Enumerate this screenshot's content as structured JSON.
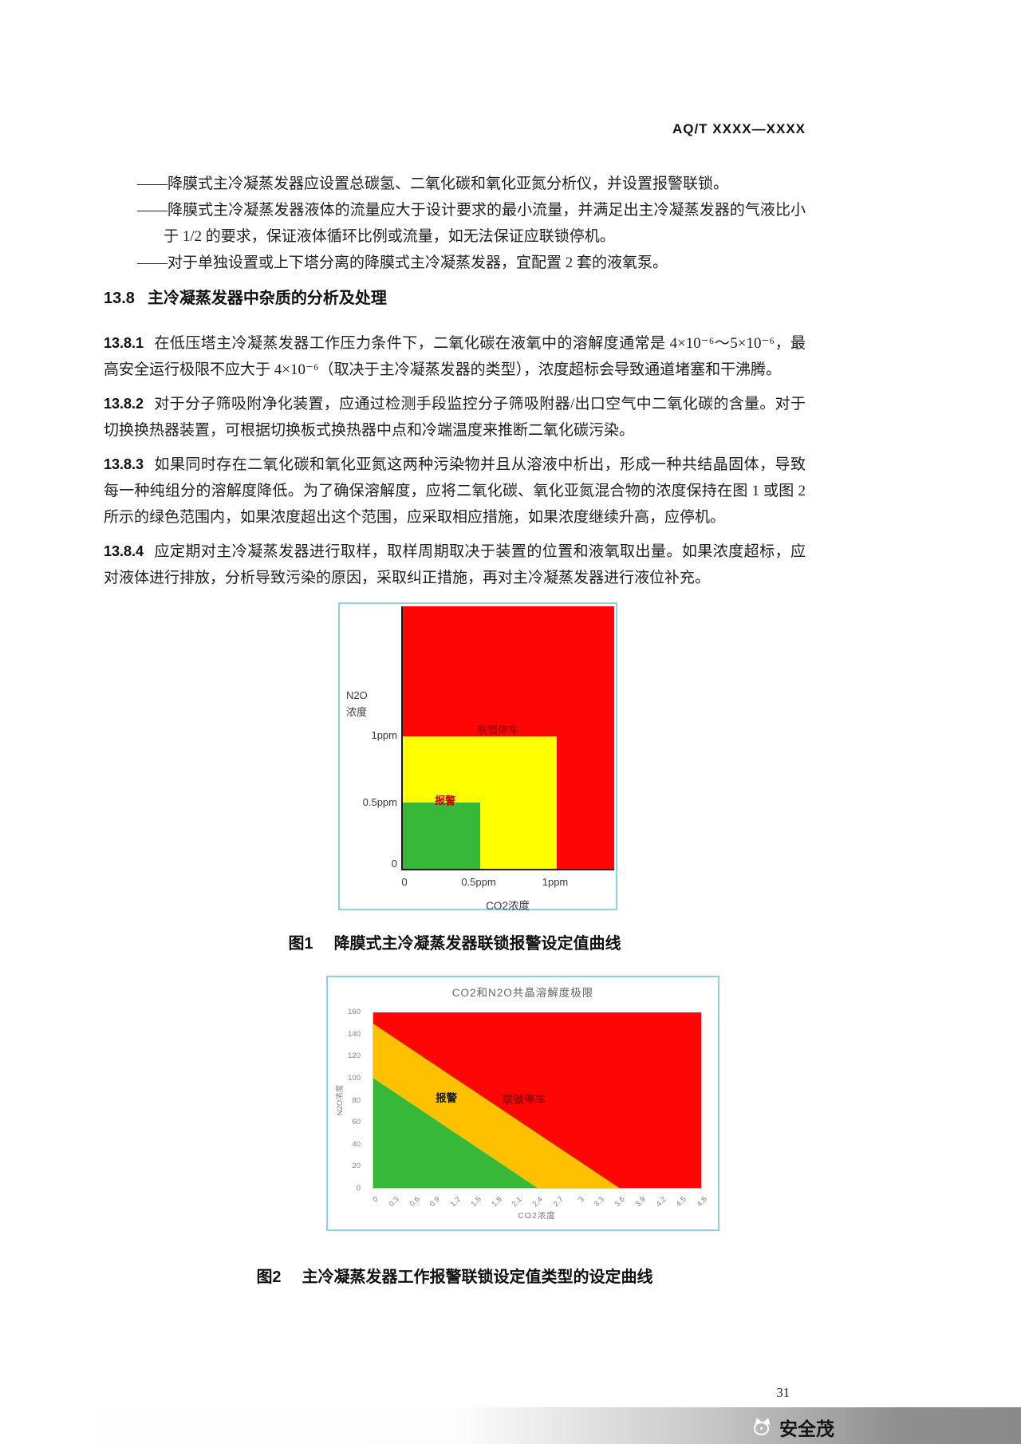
{
  "header": "AQ/T XXXX—XXXX",
  "bullets": [
    "——降膜式主冷凝蒸发器应设置总碳氢、二氧化碳和氧化亚氮分析仪，并设置报警联锁。",
    "——降膜式主冷凝蒸发器液体的流量应大于设计要求的最小流量，并满足出主冷凝蒸发器的气液比小于 1/2 的要求，保证液体循环比例或流量，如无法保证应联锁停机。",
    "——对于单独设置或上下塔分离的降膜式主冷凝蒸发器，宜配置 2 套的液氧泵。"
  ],
  "section": {
    "number": "13.8",
    "title": "主冷凝蒸发器中杂质的分析及处理"
  },
  "clauses": [
    {
      "number": "13.8.1",
      "text": "在低压塔主冷凝蒸发器工作压力条件下，二氧化碳在液氧中的溶解度通常是 4×10⁻⁶～5×10⁻⁶，最高安全运行极限不应大于 4×10⁻⁶（取决于主冷凝蒸发器的类型），浓度超标会导致通道堵塞和干沸腾。"
    },
    {
      "number": "13.8.2",
      "text": "对于分子筛吸附净化装置，应通过检测手段监控分子筛吸附器/出口空气中二氧化碳的含量。对于切换换热器装置，可根据切换板式换热器中点和冷端温度来推断二氧化碳污染。"
    },
    {
      "number": "13.8.3",
      "text": "如果同时存在二氧化碳和氧化亚氮这两种污染物并且从溶液中析出，形成一种共结晶固体，导致每一种纯组分的溶解度降低。为了确保溶解度，应将二氧化碳、氧化亚氮混合物的浓度保持在图 1 或图 2 所示的绿色范围内，如果浓度超出这个范围，应采取相应措施，如果浓度继续升高，应停机。"
    },
    {
      "number": "13.8.4",
      "text": "应定期对主冷凝蒸发器进行取样，取样周期取决于装置的位置和液氧取出量。如果浓度超标，应对液体进行排放，分析导致污染的原因，采取纠正措施，再对主冷凝蒸发器进行液位补充。"
    }
  ],
  "figure1": {
    "y_axis_label_line1": "N2O",
    "y_axis_label_line2": "浓度",
    "y_ticks": [
      "1ppm",
      "0.5ppm",
      "0"
    ],
    "x_ticks": [
      "0",
      "0.5ppm",
      "1ppm"
    ],
    "x_axis_label": "CO2浓度",
    "trip_label": "联锁停车",
    "alarm_label": "报警",
    "caption_no": "图1",
    "caption_text": "降膜式主冷凝蒸发器联锁报警设定值曲线"
  },
  "figure2": {
    "title": "CO2和N2O共晶溶解度极限",
    "y_axis_label": "N2O浓度",
    "x_axis_label": "CO2浓度",
    "y_ticks": [
      "160",
      "140",
      "120",
      "100",
      "80",
      "60",
      "40",
      "20",
      "0"
    ],
    "x_ticks": [
      "0",
      "0.3",
      "0.6",
      "0.9",
      "1.2",
      "1.5",
      "1.8",
      "2.1",
      "2.4",
      "2.7",
      "3",
      "3.3",
      "3.6",
      "3.9",
      "4.2",
      "4.5",
      "4.8"
    ],
    "alarm_label": "报警",
    "trip_label": "联锁停车",
    "caption_no": "图2",
    "caption_text": "主冷凝蒸发器工作报警联锁设定值类型的设定曲线"
  },
  "footer": {
    "page_number": "31",
    "brand_name": "安全茂"
  },
  "colors": {
    "green": "#38b838",
    "yellow": "#ffff00",
    "orange": "#ffc000",
    "red": "#fe0606",
    "figure_border": "#8ed2e2"
  },
  "chart_data": [
    {
      "figure": "图1",
      "type": "area",
      "title": "降膜式主冷凝蒸发器联锁报警设定值曲线",
      "xlabel": "CO2浓度",
      "ylabel": "N2O浓度",
      "x_ticks": [
        "0",
        "0.5ppm",
        "1ppm"
      ],
      "y_ticks": [
        "0",
        "0.5ppm",
        "1ppm"
      ],
      "xlim": [
        0,
        1.4
      ],
      "ylim": [
        0,
        2
      ],
      "grid": false,
      "regions": [
        {
          "name": "正常区(绿色)",
          "color": "#38b838",
          "shape": "rect",
          "x": [
            0,
            0.5
          ],
          "y": [
            0,
            0.5
          ]
        },
        {
          "name": "报警区(黄色)",
          "color": "#ffff00",
          "shape": "rect",
          "x": [
            0,
            1
          ],
          "y": [
            0,
            1
          ],
          "label": "报警"
        },
        {
          "name": "联锁停车区(红色)",
          "color": "#fe0606",
          "shape": "rect",
          "x": [
            0,
            1.4
          ],
          "y": [
            0,
            2
          ],
          "label": "联锁停车"
        }
      ]
    },
    {
      "figure": "图2",
      "type": "area",
      "title": "CO2和N2O共晶溶解度极限",
      "xlabel": "CO2浓度",
      "ylabel": "N2O浓度",
      "x_ticks": [
        0,
        0.3,
        0.6,
        0.9,
        1.2,
        1.5,
        1.8,
        2.1,
        2.4,
        2.7,
        3,
        3.3,
        3.6,
        3.9,
        4.2,
        4.5,
        4.8
      ],
      "y_ticks": [
        0,
        20,
        40,
        60,
        80,
        100,
        120,
        140,
        160
      ],
      "xlim": [
        0,
        4.8
      ],
      "ylim": [
        0,
        160
      ],
      "grid": false,
      "boundaries": [
        {
          "name": "报警线(绿/橙边界)",
          "points": [
            [
              0,
              100
            ],
            [
              2.4,
              0
            ]
          ]
        },
        {
          "name": "联锁停车线(橙/红边界)",
          "points": [
            [
              0,
              150
            ],
            [
              3.6,
              0
            ]
          ]
        }
      ],
      "regions": [
        {
          "name": "正常区(绿色)",
          "color": "#38b838",
          "below": "报警线"
        },
        {
          "name": "报警区(橙色)",
          "color": "#ffc000",
          "between": [
            "报警线",
            "联锁停车线"
          ],
          "label": "报警"
        },
        {
          "name": "联锁停车区(红色)",
          "color": "#fe0606",
          "above": "联锁停车线",
          "label": "联锁停车"
        }
      ]
    }
  ]
}
